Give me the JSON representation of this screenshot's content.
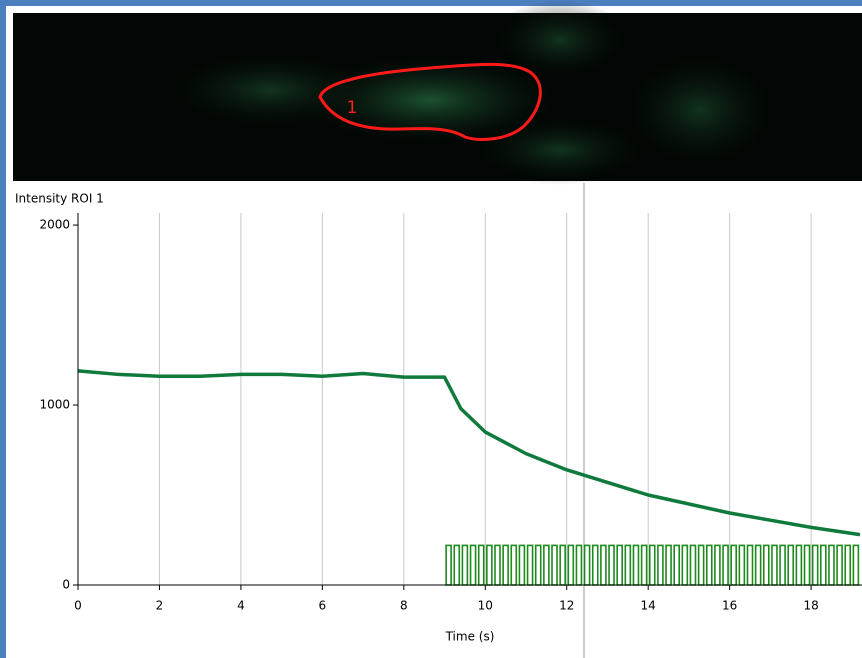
{
  "image": {
    "roi_label": "1"
  },
  "chart_data": {
    "type": "line",
    "ylabel": "Intensity ROI 1",
    "xlabel": "Time (s)",
    "color": "#0f7a3c",
    "x": [
      0,
      1,
      2,
      3,
      4,
      5,
      6,
      7,
      8,
      9,
      9.4,
      10,
      11,
      12,
      13,
      14,
      15,
      16,
      17,
      18,
      19.2
    ],
    "values": [
      1190,
      1170,
      1160,
      1160,
      1170,
      1170,
      1160,
      1175,
      1155,
      1155,
      980,
      850,
      730,
      640,
      570,
      500,
      450,
      400,
      360,
      320,
      280
    ],
    "stimulus": {
      "color": "#1e8a1e",
      "x": [
        9.1,
        9.3,
        9.5,
        9.7,
        9.9,
        10.1,
        10.3,
        10.5,
        10.7,
        10.9,
        11.1,
        11.3,
        11.5,
        11.7,
        11.9,
        12.1,
        12.3,
        12.5,
        12.7,
        12.9,
        13.1,
        13.3,
        13.5,
        13.7,
        13.9,
        14.1,
        14.3,
        14.5,
        14.7,
        14.9,
        15.1,
        15.3,
        15.5,
        15.7,
        15.9,
        16.1,
        16.3,
        16.5,
        16.7,
        16.9,
        17.1,
        17.3,
        17.5,
        17.7,
        17.9,
        18.1,
        18.3,
        18.5,
        18.7,
        18.9,
        19.1
      ],
      "values": [
        220,
        220,
        220,
        220,
        220,
        220,
        220,
        220,
        220,
        220,
        220,
        220,
        220,
        220,
        220,
        220,
        220,
        220,
        220,
        220,
        220,
        220,
        220,
        220,
        220,
        220,
        220,
        220,
        220,
        220,
        220,
        220,
        220,
        220,
        220,
        220,
        220,
        220,
        220,
        220,
        220,
        220,
        220,
        220,
        220,
        220,
        220,
        220,
        220,
        220,
        220
      ]
    },
    "xlim": [
      0,
      19.25
    ],
    "ylim": [
      0,
      2067
    ],
    "xticks": [
      0,
      2,
      4,
      6,
      8,
      10,
      12,
      14,
      16,
      18
    ],
    "yticks": [
      0,
      1000,
      2000
    ],
    "grid": true
  }
}
